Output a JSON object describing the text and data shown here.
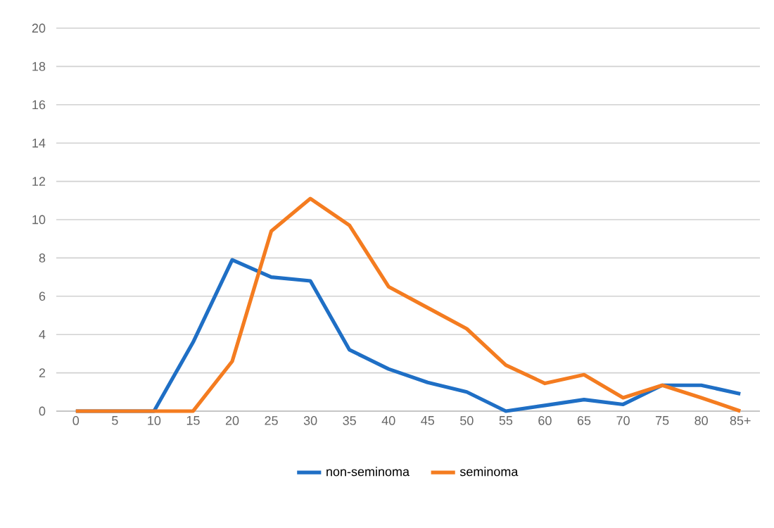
{
  "chart_data": {
    "type": "line",
    "categories": [
      "0",
      "5",
      "10",
      "15",
      "20",
      "25",
      "30",
      "35",
      "40",
      "45",
      "50",
      "55",
      "60",
      "65",
      "70",
      "75",
      "80",
      "85+"
    ],
    "series": [
      {
        "name": "non-seminoma",
        "color": "#1f6fc5",
        "values": [
          0,
          0,
          0,
          3.6,
          7.9,
          7.0,
          6.8,
          3.2,
          2.2,
          1.5,
          1.0,
          0,
          0.3,
          0.6,
          0.35,
          1.35,
          1.35,
          0.9
        ]
      },
      {
        "name": "seminoma",
        "color": "#f47c20",
        "values": [
          0,
          0,
          0,
          0,
          2.6,
          9.4,
          11.1,
          9.7,
          6.5,
          5.4,
          4.3,
          2.4,
          1.45,
          1.9,
          0.7,
          1.35,
          0.7,
          0
        ]
      }
    ],
    "ylim": [
      0,
      20
    ],
    "yticks": [
      0,
      2,
      4,
      6,
      8,
      10,
      12,
      14,
      16,
      18,
      20
    ],
    "grid": "y",
    "legend": "bottom",
    "marker": "none",
    "line_style": "solid"
  }
}
